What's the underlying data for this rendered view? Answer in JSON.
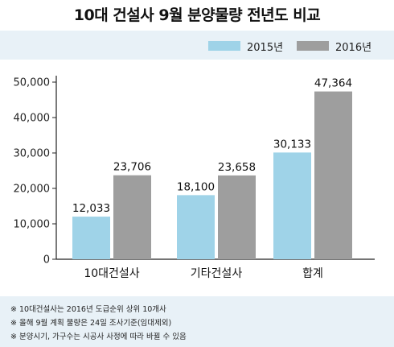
{
  "title": "10대 건설사 9월 분양물량 전년도 비교",
  "legend": [
    {
      "label": "2015년",
      "color": "#9fd3e8"
    },
    {
      "label": "2016년",
      "color": "#9e9e9e"
    }
  ],
  "chart_data": {
    "type": "bar",
    "categories": [
      "10대건설사",
      "기타건설사",
      "합계"
    ],
    "series": [
      {
        "name": "2015년",
        "values": [
          12033,
          18100,
          30133
        ],
        "labels": [
          "12,033",
          "18,100",
          "30,133"
        ],
        "color": "#9fd3e8"
      },
      {
        "name": "2016년",
        "values": [
          23706,
          23658,
          47364
        ],
        "labels": [
          "23,706",
          "23,658",
          "47,364"
        ],
        "color": "#9e9e9e"
      }
    ],
    "yticks": [
      0,
      10000,
      20000,
      30000,
      40000,
      50000
    ],
    "ytick_labels": [
      "0",
      "10,000",
      "20,000",
      "30,000",
      "40,000",
      "50,000"
    ],
    "ylim": [
      0,
      50000
    ],
    "grid": false,
    "legend_position": "top-right"
  },
  "footnotes": [
    "※ 10대건설사는 2016년 도급순위 상위 10개사",
    "※ 올해 9월 계획 물량은 24일 조사기준(임대제외)",
    "※ 분양시기, 가구수는 시공사 사정에 따라 바뀔 수 있음"
  ]
}
